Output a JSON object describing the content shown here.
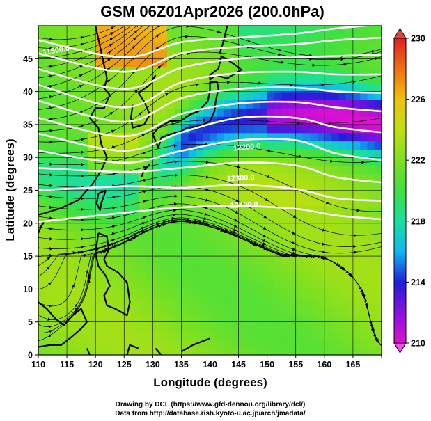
{
  "chart_data": {
    "type": "heatmap",
    "title": "GSM 06Z01Apr2026 (200.0hPa)",
    "xlabel": "Longitude (degrees)",
    "ylabel": "Latitude  (degrees)",
    "xlim": [
      110,
      170
    ],
    "ylim": [
      0,
      50
    ],
    "x_ticks": [
      110,
      115,
      120,
      125,
      130,
      135,
      140,
      145,
      150,
      155,
      160,
      165
    ],
    "y_ticks": [
      0,
      5,
      10,
      15,
      20,
      25,
      30,
      35,
      40,
      45
    ],
    "colorbar": {
      "min": 210,
      "max": 230,
      "ticks": [
        210,
        214,
        218,
        222,
        226,
        230
      ],
      "colors": [
        "#e010d0",
        "#8a10e0",
        "#2020d8",
        "#10b8f0",
        "#18e0a0",
        "#40e040",
        "#80e020",
        "#c0e010",
        "#f0c010",
        "#f07010",
        "#e02020"
      ]
    },
    "contours": {
      "color": "#ffffff",
      "lines": [
        {
          "x": [
            110,
            125,
            135,
            145,
            155,
            162,
            170
          ],
          "y": [
            47.8,
            45.2,
            47.5,
            48.2,
            48.8,
            49.6,
            50.2
          ]
        },
        {
          "x": [
            110,
            125,
            135,
            145,
            155,
            162,
            170
          ],
          "y": [
            45.8,
            43.0,
            45.8,
            46.8,
            47.2,
            47.8,
            48.2
          ]
        },
        {
          "x": [
            110,
            125,
            135,
            145,
            155,
            162,
            170
          ],
          "y": [
            43.4,
            40.4,
            43.6,
            45.0,
            45.2,
            45.4,
            45.6
          ]
        },
        {
          "x": [
            110,
            125,
            135,
            145,
            155,
            162,
            170
          ],
          "y": [
            41.0,
            37.6,
            41.4,
            42.8,
            43.0,
            42.6,
            42.6
          ]
        },
        {
          "x": [
            110,
            125,
            135,
            145,
            155,
            162,
            170
          ],
          "y": [
            38.6,
            35.4,
            39.0,
            40.4,
            40.6,
            40.0,
            39.8
          ]
        },
        {
          "x": [
            110,
            125,
            135,
            145,
            155,
            162,
            170
          ],
          "y": [
            36.0,
            33.2,
            36.6,
            38.2,
            38.4,
            37.6,
            37.0
          ]
        },
        {
          "x": [
            110,
            125,
            135,
            145,
            155,
            162,
            170
          ],
          "y": [
            33.6,
            31.0,
            33.8,
            36.0,
            36.0,
            34.6,
            33.8
          ]
        },
        {
          "x": [
            110,
            125,
            135,
            145,
            155,
            162,
            170
          ],
          "y": [
            31.0,
            29.2,
            31.0,
            32.6,
            32.6,
            30.6,
            29.6
          ]
        },
        {
          "x": [
            110,
            125,
            135,
            145,
            155,
            162,
            170
          ],
          "y": [
            28.4,
            27.8,
            28.4,
            29.2,
            28.8,
            27.0,
            26.2
          ]
        },
        {
          "x": [
            110,
            125,
            135,
            145,
            155,
            162,
            170
          ],
          "y": [
            25.0,
            25.6,
            25.4,
            25.8,
            25.2,
            23.8,
            23.4
          ]
        },
        {
          "x": [
            110,
            125,
            135,
            145,
            155,
            162,
            170
          ],
          "y": [
            20.2,
            21.6,
            22.4,
            22.6,
            22.2,
            21.2,
            20.6
          ]
        }
      ],
      "labels": [
        {
          "text": "11500.0",
          "x": 113.2,
          "y": 45.9,
          "angle": -10
        },
        {
          "text": "12200.0",
          "x": 146.5,
          "y": 31.2,
          "angle": -5
        },
        {
          "text": "12300.0",
          "x": 145.4,
          "y": 26.5,
          "angle": -3
        },
        {
          "text": "12400.0",
          "x": 146.0,
          "y": 22.4,
          "angle": -2
        }
      ]
    }
  },
  "credits": {
    "line1": "Drawing by DCL (https://www.gfd-dennou.org/library/dcl/)",
    "line2": "Data from http://database.rish.kyoto-u.ac.jp/arch/jmadata/"
  }
}
